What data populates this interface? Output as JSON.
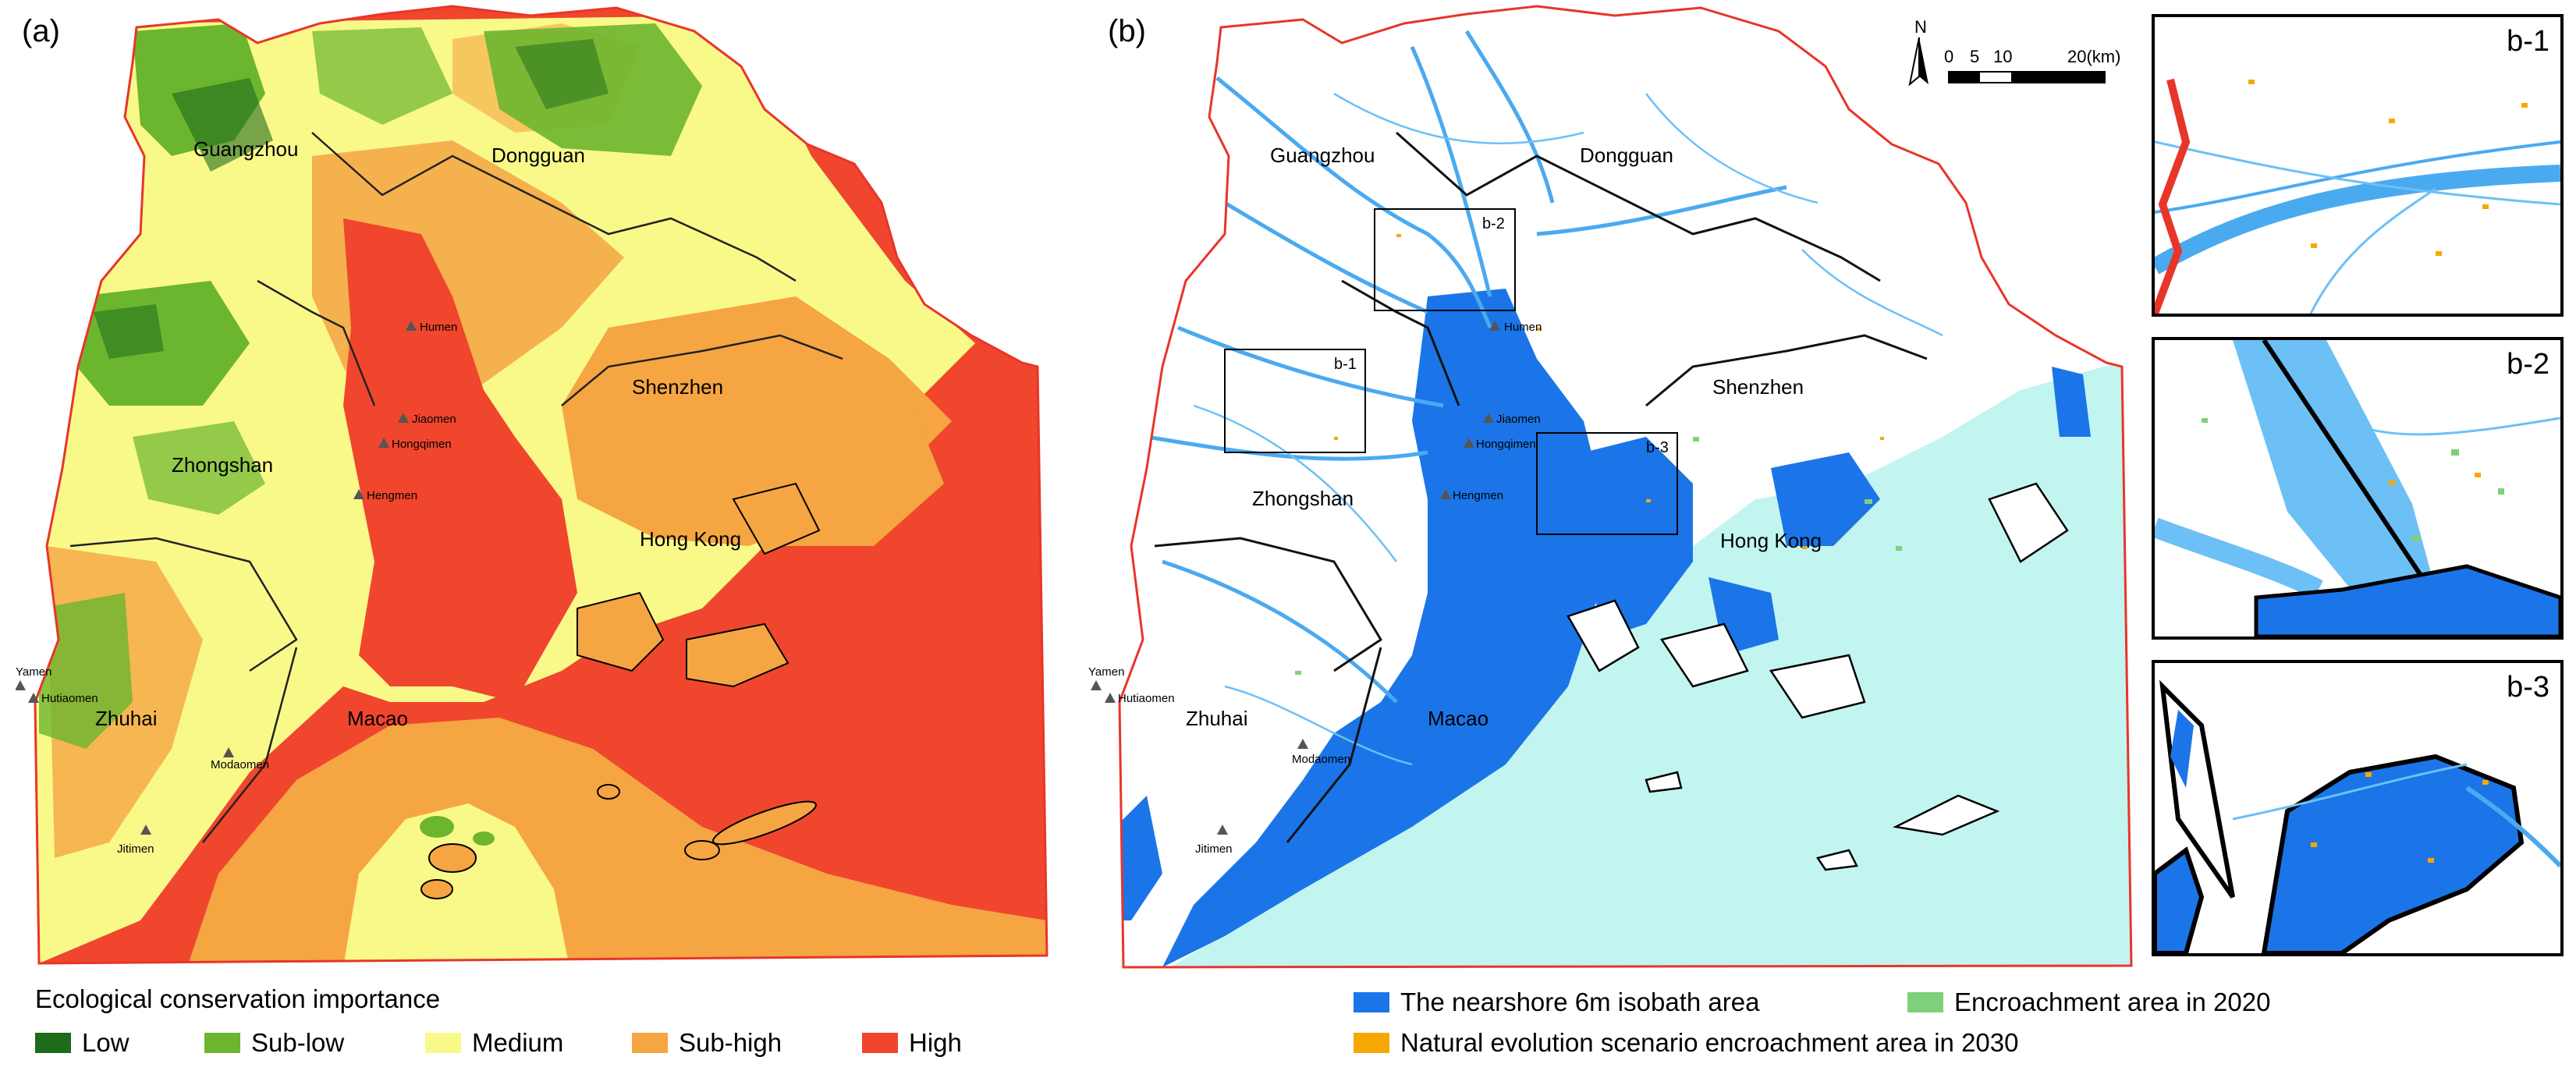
{
  "panels": {
    "a_label": "(a)",
    "b_label": "(b)"
  },
  "cities": {
    "guangzhou": "Guangzhou",
    "dongguan": "Dongguan",
    "shenzhen": "Shenzhen",
    "zhongshan": "Zhongshan",
    "hong_kong": "Hong Kong",
    "zhuhai": "Zhuhai",
    "macao": "Macao"
  },
  "outlets": {
    "humen": "Humen",
    "jiaomen": "Jiaomen",
    "hongqimen": "Hongqimen",
    "hengmen": "Hengmen",
    "yamen": "Yamen",
    "hutiaomen": "Hutiaomen",
    "modaomen": "Modaomen",
    "jitimen": "Jitimen"
  },
  "scalebar": {
    "north": "N",
    "ticks": [
      "0",
      "5",
      "10",
      "20(km)"
    ]
  },
  "insets": {
    "b1": "b-1",
    "b2": "b-2",
    "b3": "b-3"
  },
  "legend_a": {
    "title": "Ecological conservation importance",
    "items": [
      {
        "label": "Low",
        "color": "#1e6b1a"
      },
      {
        "label": "Sub-low",
        "color": "#6bb52f"
      },
      {
        "label": "Medium",
        "color": "#f9f98a"
      },
      {
        "label": "Sub-high",
        "color": "#f5a542"
      },
      {
        "label": "High",
        "color": "#f0462d"
      }
    ]
  },
  "legend_b": {
    "items": [
      {
        "label": "The nearshore 6m isobath area",
        "color": "#1b75e8"
      },
      {
        "label": "Encroachment area in 2020",
        "color": "#7ed07a"
      },
      {
        "label": "Natural evolution scenario encroachment area in 2030",
        "color": "#f5a800"
      }
    ]
  },
  "colors": {
    "boundary": "#e8352a",
    "sea_b": "#c2f5f0",
    "river": "#4aaaf0"
  }
}
